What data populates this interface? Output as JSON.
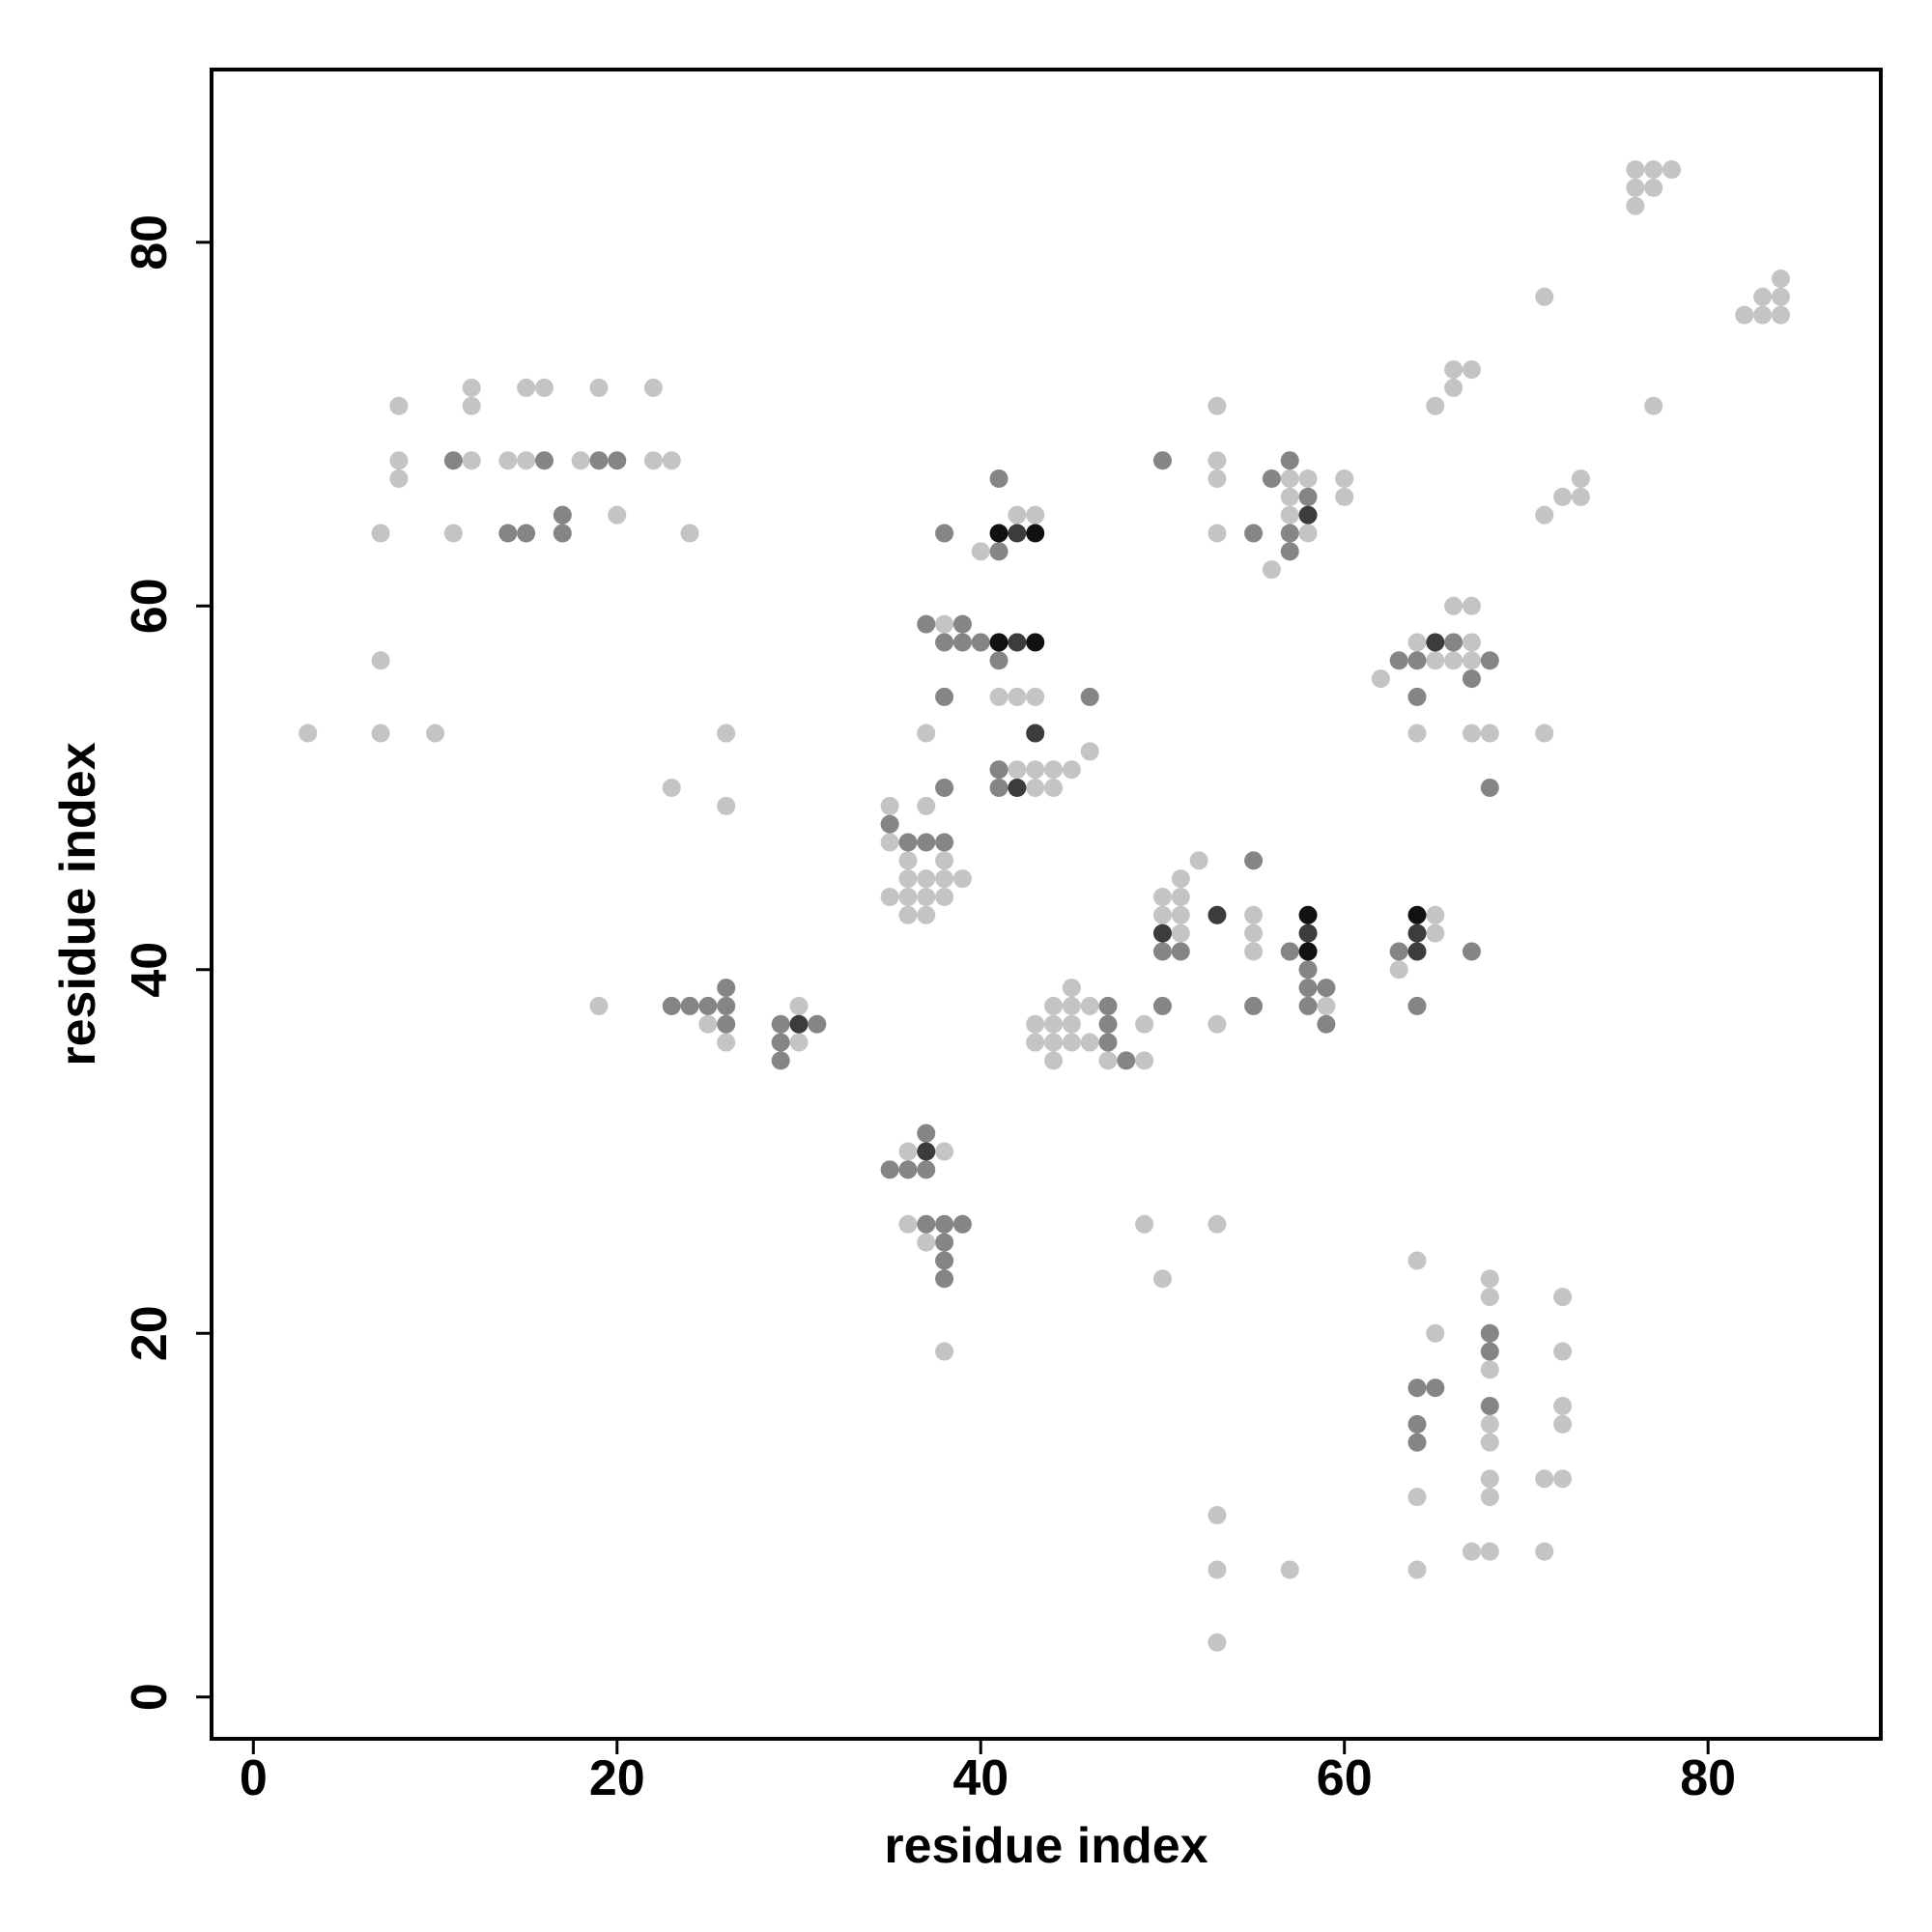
{
  "chart_data": {
    "type": "scatter",
    "xlabel": "residue index",
    "ylabel": "residue index",
    "xlim": [
      -2.3,
      89.5
    ],
    "ylim": [
      -2.3,
      89.5
    ],
    "xticks": [
      0,
      20,
      40,
      60,
      80
    ],
    "yticks": [
      0,
      20,
      40,
      60,
      80
    ],
    "grid": false,
    "series": [
      {
        "color": "#c4c4c4",
        "x": [
          76,
          77,
          78,
          76,
          77,
          76,
          82,
          83,
          84,
          83,
          84,
          84,
          71,
          77,
          65,
          66,
          67,
          66,
          71,
          72,
          73,
          73,
          71,
          3,
          7,
          10,
          7,
          7,
          8,
          8,
          8,
          11,
          12,
          12,
          12,
          14,
          15,
          15,
          16,
          18,
          19,
          20,
          22,
          22,
          23,
          24,
          23,
          26,
          26,
          19,
          25,
          26,
          30,
          30,
          35,
          35,
          37,
          36,
          38,
          36,
          37,
          38,
          39,
          35,
          36,
          37,
          38,
          36,
          37,
          37,
          38,
          40,
          42,
          43,
          41,
          42,
          43,
          46,
          42,
          43,
          44,
          45,
          43,
          44,
          43,
          43,
          44,
          44,
          44,
          44,
          45,
          45,
          45,
          45,
          46,
          46,
          47,
          49,
          49,
          50,
          50,
          51,
          51,
          51,
          51,
          52,
          53,
          55,
          55,
          55,
          59,
          63,
          65,
          65,
          62,
          64,
          65,
          66,
          67,
          66,
          67,
          67,
          64,
          67,
          68,
          53,
          53,
          53,
          53,
          56,
          57,
          57,
          57,
          58,
          58,
          60,
          60,
          36,
          38,
          36,
          37,
          38,
          49,
          50,
          53,
          53,
          53,
          53,
          57,
          64,
          65,
          64,
          64,
          68,
          68,
          68,
          68,
          68,
          68,
          68,
          67,
          68,
          72,
          72,
          72,
          72,
          71,
          72,
          71
        ],
        "values": [
          84,
          84,
          84,
          83,
          83,
          82,
          76,
          76,
          76,
          77,
          77,
          78,
          77,
          71,
          71,
          73,
          73,
          72,
          65,
          66,
          66,
          67,
          53,
          53,
          53,
          53,
          57,
          64,
          71,
          68,
          67,
          64,
          68,
          71,
          72,
          68,
          68,
          72,
          72,
          68,
          72,
          65,
          72,
          68,
          68,
          64,
          50,
          53,
          49,
          38,
          37,
          36,
          38,
          36,
          49,
          47,
          49,
          46,
          46,
          45,
          45,
          45,
          45,
          44,
          44,
          44,
          44,
          43,
          43,
          53,
          59,
          63,
          65,
          65,
          55,
          55,
          55,
          52,
          51,
          51,
          51,
          51,
          50,
          50,
          37,
          36,
          38,
          37,
          36,
          35,
          39,
          38,
          37,
          36,
          38,
          36,
          35,
          35,
          37,
          44,
          43,
          45,
          44,
          43,
          42,
          46,
          37,
          43,
          42,
          41,
          38,
          40,
          43,
          42,
          56,
          58,
          57,
          60,
          60,
          57,
          58,
          57,
          53,
          53,
          53,
          71,
          68,
          67,
          64,
          62,
          67,
          66,
          65,
          67,
          64,
          67,
          66,
          30,
          30,
          26,
          25,
          19,
          26,
          23,
          26,
          10,
          7,
          3,
          7,
          24,
          20,
          11,
          7,
          23,
          22,
          18,
          15,
          14,
          12,
          11,
          8,
          8,
          22,
          19,
          16,
          15,
          12,
          12,
          8
        ]
      },
      {
        "color": "#858585",
        "x": [
          11,
          16,
          14,
          15,
          17,
          17,
          19,
          20,
          23,
          24,
          25,
          26,
          26,
          26,
          29,
          29,
          29,
          31,
          35,
          36,
          37,
          38,
          38,
          38,
          37,
          39,
          38,
          39,
          40,
          41,
          38,
          41,
          41,
          46,
          41,
          41,
          47,
          47,
          47,
          48,
          50,
          50,
          51,
          55,
          55,
          57,
          58,
          58,
          58,
          59,
          59,
          63,
          67,
          64,
          63,
          64,
          66,
          67,
          68,
          64,
          68,
          50,
          55,
          56,
          57,
          57,
          57,
          58,
          35,
          36,
          37,
          37,
          37,
          38,
          39,
          38,
          38,
          38,
          64,
          65,
          64,
          64,
          68,
          68,
          68
        ],
        "values": [
          68,
          68,
          64,
          64,
          65,
          64,
          68,
          68,
          38,
          38,
          38,
          38,
          39,
          37,
          37,
          36,
          35,
          37,
          48,
          47,
          47,
          47,
          50,
          55,
          59,
          59,
          58,
          58,
          58,
          57,
          64,
          63,
          67,
          55,
          51,
          50,
          38,
          37,
          36,
          35,
          38,
          41,
          41,
          46,
          38,
          41,
          40,
          39,
          38,
          39,
          37,
          41,
          41,
          38,
          57,
          57,
          58,
          56,
          57,
          55,
          50,
          68,
          64,
          67,
          68,
          64,
          63,
          66,
          29,
          29,
          29,
          31,
          26,
          26,
          26,
          25,
          24,
          23,
          17,
          17,
          15,
          14,
          20,
          19,
          16
        ]
      },
      {
        "color": "#3c3c3c",
        "x": [
          30,
          37,
          42,
          42,
          43,
          42,
          50,
          53,
          58,
          64,
          64,
          65,
          58
        ],
        "values": [
          37,
          30,
          58,
          64,
          53,
          50,
          42,
          43,
          42,
          42,
          41,
          58,
          65
        ]
      },
      {
        "color": "#111111",
        "x": [
          41,
          43,
          41,
          43,
          58,
          58,
          64
        ],
        "values": [
          58,
          58,
          64,
          64,
          43,
          41,
          43
        ]
      }
    ]
  }
}
